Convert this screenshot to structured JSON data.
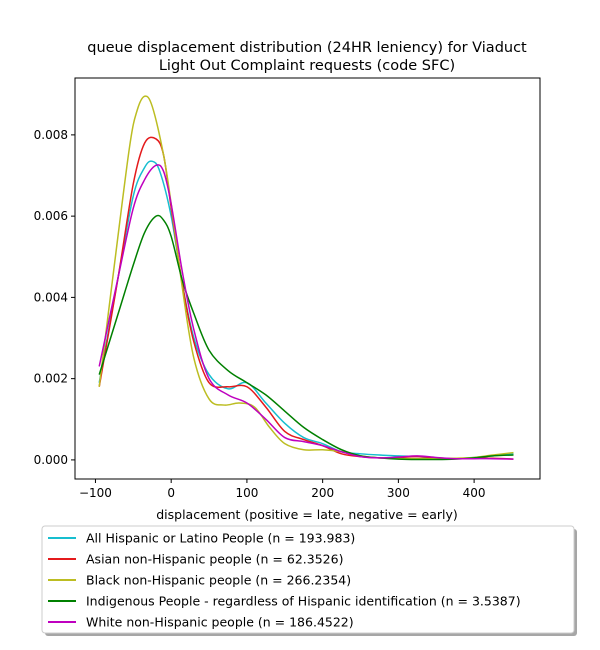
{
  "chart_data": {
    "type": "line",
    "title_lines": [
      "queue displacement distribution (24HR leniency) for Viaduct",
      "Light Out Complaint  requests (code SFC)"
    ],
    "xlabel": "displacement (positive = late, negative = early)",
    "ylabel": "",
    "xlim": [
      -127,
      487
    ],
    "ylim": [
      -0.00047,
      0.0094
    ],
    "xticks": [
      -100,
      0,
      100,
      200,
      300,
      400
    ],
    "xtick_labels": [
      "−100",
      "0",
      "100",
      "200",
      "300",
      "400"
    ],
    "yticks": [
      0.0,
      0.002,
      0.004,
      0.006,
      0.008
    ],
    "ytick_labels": [
      "0.000",
      "0.002",
      "0.004",
      "0.006",
      "0.008"
    ],
    "grid": false,
    "legend_position": "bottom, below axes",
    "series": [
      {
        "name": "All Hispanic or Latino People (n = 193.983)",
        "color": "#17becf",
        "x": [
          -95,
          -70,
          -50,
          -35,
          -25,
          -15,
          0,
          15,
          30,
          50,
          75,
          100,
          125,
          150,
          175,
          200,
          225,
          250,
          275,
          300,
          325,
          350,
          375,
          400,
          425,
          452
        ],
        "y": [
          0.0019,
          0.0045,
          0.0065,
          0.0072,
          0.00735,
          0.0071,
          0.006,
          0.0043,
          0.003,
          0.0021,
          0.00175,
          0.0019,
          0.0014,
          0.0009,
          0.00055,
          0.0004,
          0.0002,
          0.00015,
          0.00012,
          0.0001,
          8e-05,
          4e-05,
          3e-05,
          6e-05,
          0.0001,
          0.00015
        ]
      },
      {
        "name": "Asian non-Hispanic people (n = 62.3526)",
        "color": "#e41a1c",
        "x": [
          -95,
          -70,
          -50,
          -35,
          -20,
          -10,
          0,
          15,
          30,
          50,
          75,
          100,
          125,
          150,
          175,
          200,
          225,
          250,
          275,
          300,
          325,
          350,
          375,
          400,
          425,
          452
        ],
        "y": [
          0.0018,
          0.0045,
          0.0068,
          0.0078,
          0.0079,
          0.0075,
          0.0062,
          0.0043,
          0.0029,
          0.0019,
          0.0018,
          0.0018,
          0.0013,
          0.0007,
          0.0005,
          0.00035,
          0.00015,
          8e-05,
          5e-05,
          6e-05,
          8e-05,
          5e-05,
          3e-05,
          4e-05,
          4e-05,
          2e-05
        ]
      },
      {
        "name": "Black non-Hispanic people (n = 266.2354)",
        "color": "#bcbd22",
        "x": [
          -95,
          -75,
          -55,
          -45,
          -35,
          -25,
          -10,
          0,
          15,
          30,
          50,
          70,
          90,
          110,
          130,
          150,
          175,
          200,
          225,
          250,
          275,
          300,
          325,
          350,
          375,
          400,
          425,
          452
        ],
        "y": [
          0.0018,
          0.0048,
          0.0077,
          0.0086,
          0.00895,
          0.0087,
          0.0075,
          0.0063,
          0.0042,
          0.0025,
          0.0015,
          0.00135,
          0.0014,
          0.0013,
          0.0008,
          0.0004,
          0.00025,
          0.00025,
          0.0002,
          0.0001,
          5e-05,
          3e-05,
          3e-05,
          3e-05,
          4e-05,
          6e-05,
          0.00012,
          0.00018
        ]
      },
      {
        "name": "Indigenous People - regardless of Hispanic identification (n = 3.5387)",
        "color": "#008000",
        "x": [
          -95,
          -70,
          -50,
          -35,
          -20,
          -10,
          0,
          15,
          30,
          50,
          75,
          100,
          125,
          150,
          175,
          200,
          225,
          250,
          275,
          300,
          325,
          350,
          375,
          400,
          425,
          452
        ],
        "y": [
          0.0021,
          0.0036,
          0.0048,
          0.0056,
          0.006,
          0.0059,
          0.0055,
          0.0044,
          0.0036,
          0.0027,
          0.0022,
          0.0019,
          0.0016,
          0.0012,
          0.0008,
          0.0005,
          0.00025,
          0.0001,
          5e-05,
          2e-05,
          1e-05,
          1e-05,
          2e-05,
          5e-05,
          0.0001,
          0.00012
        ]
      },
      {
        "name": "White non-Hispanic people (n = 186.4522)",
        "color": "#bf00bf",
        "x": [
          -95,
          -70,
          -50,
          -35,
          -20,
          -10,
          0,
          15,
          30,
          50,
          75,
          100,
          125,
          150,
          175,
          200,
          225,
          250,
          275,
          300,
          325,
          350,
          375,
          400,
          425,
          452
        ],
        "y": [
          0.0023,
          0.0045,
          0.0062,
          0.0069,
          0.00725,
          0.0071,
          0.0063,
          0.0046,
          0.0032,
          0.002,
          0.0016,
          0.0014,
          0.001,
          0.00055,
          0.00045,
          0.00035,
          0.0002,
          8e-05,
          5e-05,
          7e-05,
          0.0001,
          6e-05,
          3e-05,
          3e-05,
          3e-05,
          2e-05
        ]
      }
    ]
  }
}
